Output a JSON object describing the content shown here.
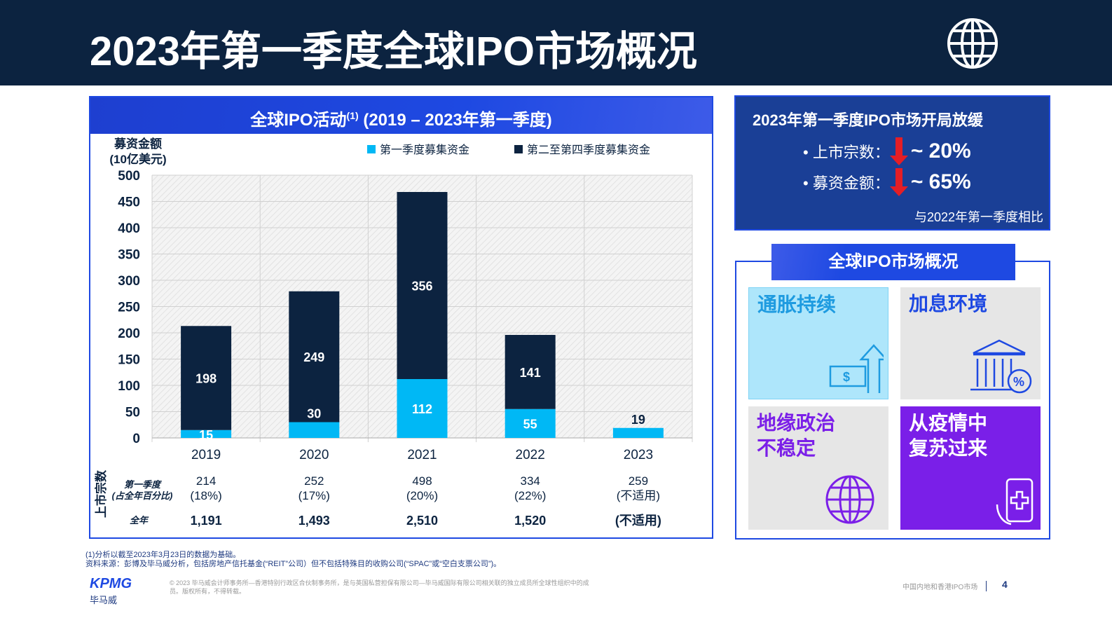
{
  "header": {
    "title": "2023年第一季度全球IPO市场概况",
    "icon": "globe-icon"
  },
  "chart_panel": {
    "title": "全球IPO活动",
    "title_sup": "(1)",
    "title_suffix": " (2019 – 2023年第一季度)"
  },
  "chart_data": {
    "type": "bar",
    "stacked": true,
    "ylabel": "募资金额",
    "ylabel2": "(10亿美元)",
    "ylim": [
      0,
      500
    ],
    "yticks": [
      0,
      50,
      100,
      150,
      200,
      250,
      300,
      350,
      400,
      450,
      500
    ],
    "categories": [
      "2019",
      "2020",
      "2021",
      "2022",
      "2023"
    ],
    "series": [
      {
        "name": "第一季度募集资金",
        "color": "#00b8f5",
        "values": [
          15,
          30,
          112,
          55,
          19
        ]
      },
      {
        "name": "第二至第四季度募集资金",
        "color": "#0c2340",
        "values": [
          198,
          249,
          356,
          141,
          null
        ]
      }
    ],
    "legend": "top",
    "grid": true
  },
  "table": {
    "row_group_label": "上市宗数",
    "q1_label": "第一季度",
    "q1_label2": "(占全年百分比)",
    "full_label": "全年",
    "q1_counts": [
      "214",
      "252",
      "498",
      "334",
      "259"
    ],
    "q1_pct": [
      "(18%)",
      "(17%)",
      "(20%)",
      "(22%)",
      "(不适用)"
    ],
    "full_year": [
      "1,191",
      "1,493",
      "2,510",
      "1,520",
      "(不适用)"
    ]
  },
  "kpi": {
    "title": "2023年第一季度IPO市场开局放缓",
    "items": [
      {
        "label": "• 上市宗数：",
        "value": "~ 20%"
      },
      {
        "label": "• 募资金额：",
        "value": "~ 65%"
      }
    ],
    "note": "与2022年第一季度相比",
    "arrow_color": "#e41e26"
  },
  "overview": {
    "title": "全球IPO市场概况",
    "tiles": [
      {
        "l1": "通胀持续",
        "l2": "",
        "icon": "money-arrow-up-icon"
      },
      {
        "l1": "加息环境",
        "l2": "",
        "icon": "bank-percent-icon"
      },
      {
        "l1": "地缘政治",
        "l2": "不稳定",
        "icon": "globe-icon"
      },
      {
        "l1": "从疫情中",
        "l2": "复苏过来",
        "icon": "phone-medical-icon"
      }
    ]
  },
  "footnotes": {
    "n1": "(1)分析以截至2023年3月23日的数据为基础。",
    "source": "资料来源：彭博及毕马威分析，包括房地产信托基金(“REIT”公司）但不包括特殊目的收购公司(“SPAC”或“空白支票公司”)。"
  },
  "footer": {
    "logo": "KPMG",
    "logo_cn": "毕马威",
    "copyright": "© 2023 毕马威会计师事务所—香港特别行政区合伙制事务所，是与英国私营担保有限公司—毕马威国际有限公司相关联的独立成员所全球性组织中的成员。版权所有，不得转载。",
    "section": "中国内地和香港IPO市场",
    "page": "4"
  }
}
